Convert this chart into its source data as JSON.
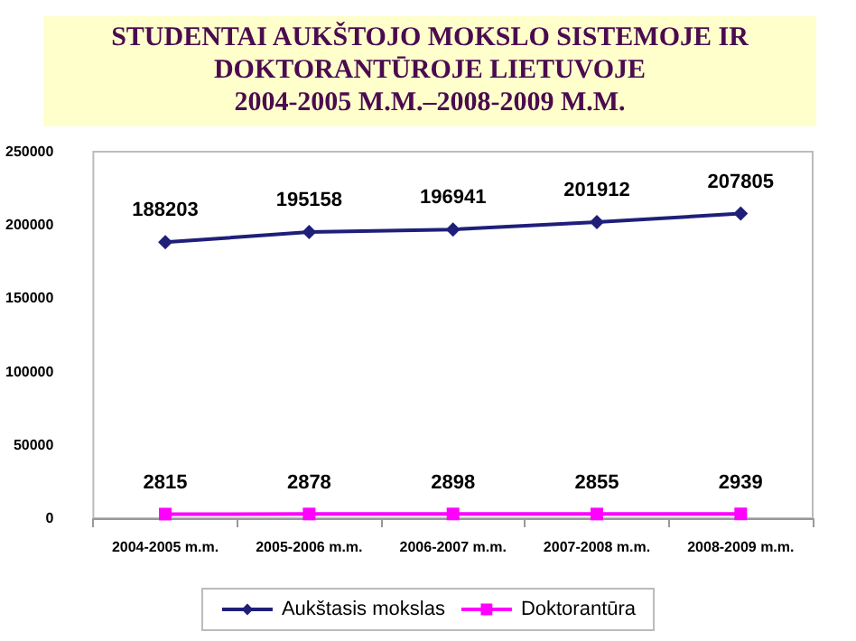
{
  "chart_data": {
    "type": "line",
    "title": "STUDENTAI AUKŠTOJO MOKSLO SISTEMOJE IR\nDOKTORANTŪROJE LIETUVOJE\n2004-2005 M.M.–2008-2009 M.M.",
    "categories": [
      "2004-2005 m.m.",
      "2005-2006 m.m.",
      "2006-2007 m.m.",
      "2007-2008 m.m.",
      "2008-2009 m.m."
    ],
    "series": [
      {
        "name": "Aukštasis mokslas",
        "color": "#1f1f7a",
        "marker": "diamond",
        "values": [
          188203,
          195158,
          196941,
          201912,
          207805
        ]
      },
      {
        "name": "Doktorantūra",
        "color": "#ff00ff",
        "marker": "square",
        "values": [
          2815,
          2878,
          2898,
          2855,
          2939
        ]
      }
    ],
    "ylim": [
      0,
      250000
    ],
    "yticks": [
      0,
      50000,
      100000,
      150000,
      200000,
      250000
    ],
    "data_labels": true,
    "grid": false,
    "legend": "bottom"
  }
}
